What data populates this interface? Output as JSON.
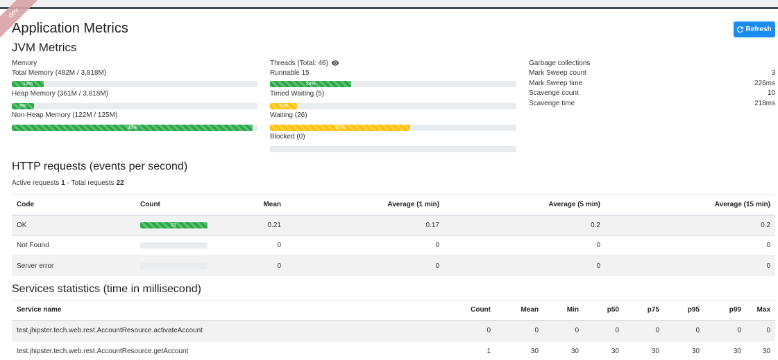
{
  "header": {
    "ribbon_text": "dev",
    "title": "Application Metrics",
    "refresh_label": "Refresh"
  },
  "jvm": {
    "title": "JVM Metrics",
    "memory": {
      "heading": "Memory",
      "items": [
        {
          "label": "Total Memory (482M / 3,818M)",
          "percent_label": "13%",
          "percent": 13
        },
        {
          "label": "Heap Memory (361M / 3,818M)",
          "percent_label": "9%",
          "percent": 9
        },
        {
          "label": "Non-Heap Memory (122M / 125M)",
          "percent_label": "98%",
          "percent": 98
        }
      ]
    },
    "threads": {
      "heading": "Threads (Total: 46)",
      "items": [
        {
          "label": "Runnable 15",
          "percent_label": "33%",
          "percent": 33,
          "color": "#28a745"
        },
        {
          "label": "Timed Waiting (5)",
          "percent_label": "11%",
          "percent": 11,
          "color": "#ffc107"
        },
        {
          "label": "Waiting (26)",
          "percent_label": "57%",
          "percent": 57,
          "color": "#ffc107"
        },
        {
          "label": "Blocked (0)",
          "percent_label": "",
          "percent": 0,
          "color": "#28a745"
        }
      ]
    },
    "gc": {
      "heading": "Garbage collections",
      "rows": [
        {
          "label": "Mark Sweep count",
          "value": "3"
        },
        {
          "label": "Mark Sweep time",
          "value": "226ms"
        },
        {
          "label": "Scavenge count",
          "value": "10"
        },
        {
          "label": "Scavenge time",
          "value": "218ms"
        }
      ]
    }
  },
  "http": {
    "title": "HTTP requests (events per second)",
    "active_prefix": "Active requests",
    "active_value": "1",
    "total_prefix": "- Total requests",
    "total_value": "22",
    "headers": [
      "Code",
      "Count",
      "Mean",
      "Average (1 min)",
      "Average (5 min)",
      "Average (15 min)"
    ],
    "rows": [
      {
        "code": "OK",
        "count": "22",
        "count_percent": 100,
        "mean": "0.21",
        "avg1": "0.17",
        "avg5": "0.2",
        "avg15": "0.2"
      },
      {
        "code": "Not Found",
        "count": "0",
        "count_percent": 0,
        "mean": "0",
        "avg1": "0",
        "avg5": "0",
        "avg15": "0"
      },
      {
        "code": "Server error",
        "count": "0",
        "count_percent": 0,
        "mean": "0",
        "avg1": "0",
        "avg5": "0",
        "avg15": "0"
      }
    ]
  },
  "services": {
    "title": "Services statistics (time in millisecond)",
    "headers": [
      "Service name",
      "Count",
      "Mean",
      "Min",
      "p50",
      "p75",
      "p95",
      "p99",
      "Max"
    ],
    "rows": [
      {
        "name": "test.jhipster.tech.web.rest.AccountResource.activateAccount",
        "values": [
          "0",
          "0",
          "0",
          "0",
          "0",
          "0",
          "0",
          "0"
        ]
      },
      {
        "name": "test.jhipster.tech.web.rest.AccountResource.getAccount",
        "values": [
          "1",
          "30",
          "30",
          "30",
          "30",
          "30",
          "30",
          "30"
        ]
      }
    ]
  },
  "colors": {
    "primary": "#1a8cf0",
    "success": "#28a745",
    "warning": "#ffc107",
    "track": "#e9ecef"
  }
}
